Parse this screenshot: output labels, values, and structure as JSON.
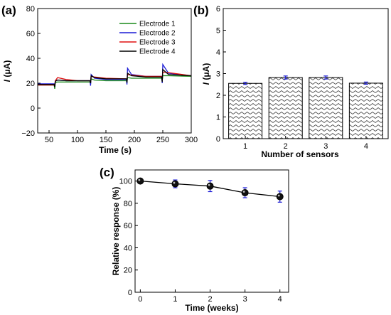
{
  "chart_data": [
    {
      "panel": "(a)",
      "type": "line",
      "xlabel": "Time (s)",
      "ylabel_italic": "I",
      "ylabel_unit": " (μA)",
      "xlim": [
        30,
        300
      ],
      "ylim": [
        -20,
        80
      ],
      "xticks": [
        50,
        100,
        150,
        200,
        250,
        300
      ],
      "yticks": [
        -20,
        0,
        20,
        40,
        60,
        80
      ],
      "legend_position": "top-right",
      "series": [
        {
          "name": "Electrode 1",
          "color": "#1a8a1a",
          "x": [
            30,
            59,
            60,
            61,
            65,
            80,
            100,
            122,
            123,
            124,
            130,
            150,
            186,
            187,
            188,
            195,
            220,
            248,
            249,
            250,
            260,
            300
          ],
          "y": [
            18.5,
            18.5,
            15.5,
            20.5,
            21,
            21,
            21,
            21,
            19.5,
            23.5,
            22.5,
            22,
            22,
            20,
            24.5,
            24,
            24,
            24,
            22,
            26,
            26,
            25.5
          ]
        },
        {
          "name": "Electrode 2",
          "color": "#1c1cd6",
          "x": [
            30,
            59,
            60,
            61,
            65,
            80,
            100,
            122,
            123,
            124,
            130,
            150,
            186,
            187,
            188,
            195,
            220,
            248,
            249,
            250,
            260,
            300
          ],
          "y": [
            19.5,
            19.5,
            18,
            22,
            22.5,
            22,
            22,
            22,
            18,
            27,
            24,
            23,
            23,
            19,
            32,
            27,
            25.5,
            25.5,
            20,
            35,
            28,
            26
          ]
        },
        {
          "name": "Electrode 3",
          "color": "#e01010",
          "x": [
            30,
            59,
            60,
            61,
            65,
            80,
            100,
            122,
            123,
            124,
            130,
            150,
            186,
            187,
            188,
            195,
            220,
            248,
            249,
            250,
            260,
            300
          ],
          "y": [
            18.5,
            18.5,
            18,
            22,
            24.5,
            23,
            22,
            22,
            20.5,
            25.5,
            25,
            24,
            23.5,
            22,
            27,
            26.5,
            25.5,
            25.5,
            24,
            29,
            28.5,
            26
          ]
        },
        {
          "name": "Electrode 4",
          "color": "#000000",
          "x": [
            30,
            59,
            60,
            61,
            65,
            80,
            100,
            122,
            123,
            124,
            130,
            150,
            186,
            187,
            188,
            195,
            220,
            248,
            249,
            250,
            260,
            300
          ],
          "y": [
            19,
            19,
            17,
            21.5,
            22.5,
            22,
            22,
            22,
            20,
            26,
            24.5,
            23.5,
            23.5,
            20.5,
            28,
            26,
            25,
            25,
            21,
            31,
            27,
            26
          ]
        }
      ]
    },
    {
      "panel": "(b)",
      "type": "bar",
      "xlabel": "Number of sensors",
      "ylabel_italic": "I",
      "ylabel_unit": " (μA)",
      "categories": [
        "1",
        "2",
        "3",
        "4"
      ],
      "values": [
        2.55,
        2.82,
        2.82,
        2.56
      ],
      "errors": [
        0.05,
        0.07,
        0.07,
        0.05
      ],
      "ylim": [
        0,
        6
      ],
      "yticks": [
        0,
        1,
        2,
        3,
        4,
        5,
        6
      ],
      "bar_pattern": "zigzag",
      "error_color": "#1c1cd6"
    },
    {
      "panel": "(c)",
      "type": "line",
      "xlabel": "Time (weeks)",
      "ylabel": "Relative response (%)",
      "x": [
        0,
        1,
        2,
        3,
        4
      ],
      "xlim": [
        -0.15,
        4.25
      ],
      "ylim": [
        0,
        110
      ],
      "xticks": [
        0,
        1,
        2,
        3,
        4
      ],
      "yticks": [
        0,
        20,
        40,
        60,
        80,
        100
      ],
      "series": [
        {
          "values": [
            100,
            97.5,
            95.5,
            89.5,
            86
          ],
          "errors": [
            1.5,
            3.5,
            5,
            4.5,
            5
          ],
          "color": "#000000",
          "error_color": "#1c1cd6"
        }
      ]
    }
  ]
}
